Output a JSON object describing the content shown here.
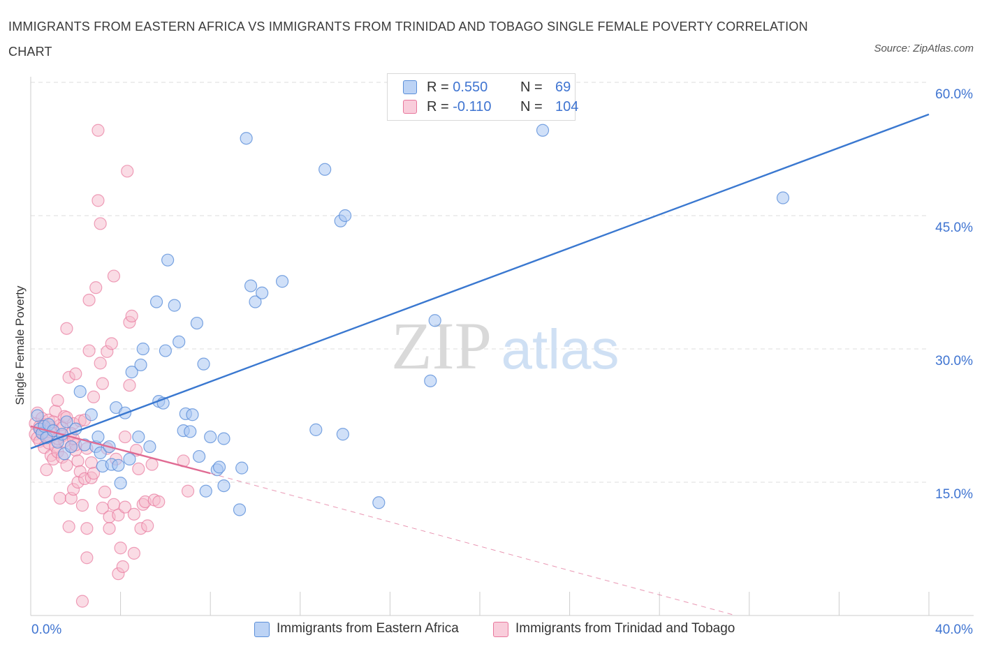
{
  "header": {
    "title": "IMMIGRANTS FROM EASTERN AFRICA VS IMMIGRANTS FROM TRINIDAD AND TOBAGO SINGLE FEMALE POVERTY CORRELATION CHART",
    "source": "Source: ZipAtlas.com"
  },
  "watermark": {
    "zip": "ZIP",
    "atlas": "atlas"
  },
  "colors": {
    "blue_fill": "#a9c7f2",
    "blue_stroke": "#5b8fd9",
    "blue_line": "#3a78d0",
    "pink_fill": "#f6b9cc",
    "pink_stroke": "#e8779c",
    "pink_line": "#e06b93",
    "grid": "#dcdcdc",
    "axis_text": "#3f74d1"
  },
  "legend_top": {
    "rows": [
      {
        "r_label": "R =",
        "r_value": "0.550",
        "n_label": "N =",
        "n_value": "69",
        "color": "#a9c7f2"
      },
      {
        "r_label": "R =",
        "r_value": "-0.110",
        "n_label": "N =",
        "n_value": "104",
        "color": "#f6b9cc"
      }
    ]
  },
  "legend_bottom": [
    {
      "label": "Immigrants from Eastern Africa",
      "color": "#a9c7f2"
    },
    {
      "label": "Immigrants from Trinidad and Tobago",
      "color": "#f6b9cc"
    }
  ],
  "chart_data": {
    "type": "scatter",
    "title": "IMMIGRANTS FROM EASTERN AFRICA VS IMMIGRANTS FROM TRINIDAD AND TOBAGO SINGLE FEMALE POVERTY CORRELATION CHART",
    "xlabel": "",
    "ylabel": "Single Female Poverty",
    "xlim": [
      0,
      40
    ],
    "ylim": [
      0,
      60
    ],
    "x_tick_labels": [
      "0.0%",
      "40.0%"
    ],
    "y_ticks": [
      15,
      30,
      45,
      60
    ],
    "y_tick_labels": [
      "15.0%",
      "30.0%",
      "45.0%",
      "60.0%"
    ],
    "grid": true,
    "legend_position": "bottom",
    "series": [
      {
        "name": "Immigrants from Eastern Africa",
        "color": "#a9c7f2",
        "trend": {
          "x": [
            0.0,
            40.0
          ],
          "y": [
            18.8,
            56.4
          ],
          "style": "solid"
        },
        "points": [
          [
            0.4,
            21.0
          ],
          [
            0.5,
            20.5
          ],
          [
            0.6,
            21.3
          ],
          [
            0.7,
            20.0
          ],
          [
            0.8,
            21.5
          ],
          [
            1.0,
            20.8
          ],
          [
            1.2,
            19.5
          ],
          [
            1.4,
            20.4
          ],
          [
            1.5,
            18.2
          ],
          [
            1.6,
            21.8
          ],
          [
            1.8,
            19.0
          ],
          [
            2.0,
            21.0
          ],
          [
            2.2,
            25.2
          ],
          [
            2.4,
            19.2
          ],
          [
            2.7,
            22.6
          ],
          [
            2.9,
            19.0
          ],
          [
            3.0,
            20.1
          ],
          [
            3.1,
            18.3
          ],
          [
            3.2,
            16.8
          ],
          [
            3.5,
            19.0
          ],
          [
            3.6,
            17.0
          ],
          [
            3.8,
            23.4
          ],
          [
            3.9,
            16.9
          ],
          [
            4.0,
            14.9
          ],
          [
            4.2,
            22.8
          ],
          [
            4.4,
            17.6
          ],
          [
            4.5,
            27.4
          ],
          [
            4.8,
            20.1
          ],
          [
            4.9,
            28.2
          ],
          [
            5.0,
            30.0
          ],
          [
            5.3,
            19.0
          ],
          [
            5.6,
            35.3
          ],
          [
            5.7,
            24.1
          ],
          [
            5.9,
            23.9
          ],
          [
            6.0,
            29.8
          ],
          [
            6.1,
            40.0
          ],
          [
            6.4,
            34.9
          ],
          [
            6.6,
            30.8
          ],
          [
            6.8,
            20.8
          ],
          [
            6.9,
            22.7
          ],
          [
            7.1,
            20.7
          ],
          [
            7.2,
            22.6
          ],
          [
            7.4,
            32.9
          ],
          [
            7.5,
            17.9
          ],
          [
            7.7,
            28.3
          ],
          [
            7.8,
            14.0
          ],
          [
            8.0,
            20.1
          ],
          [
            8.3,
            16.4
          ],
          [
            8.4,
            16.7
          ],
          [
            8.6,
            14.6
          ],
          [
            8.6,
            19.9
          ],
          [
            9.3,
            11.9
          ],
          [
            9.4,
            16.6
          ],
          [
            9.6,
            53.7
          ],
          [
            9.8,
            37.1
          ],
          [
            10.0,
            35.3
          ],
          [
            10.3,
            36.3
          ],
          [
            11.2,
            37.6
          ],
          [
            12.7,
            20.9
          ],
          [
            13.1,
            50.2
          ],
          [
            13.8,
            44.4
          ],
          [
            13.9,
            20.4
          ],
          [
            14.0,
            45.0
          ],
          [
            15.5,
            12.7
          ],
          [
            17.8,
            26.4
          ],
          [
            18.0,
            33.2
          ],
          [
            22.8,
            54.6
          ],
          [
            33.5,
            47.0
          ],
          [
            0.3,
            22.5
          ]
        ]
      },
      {
        "name": "Immigrants from Trinidad and Tobago",
        "color": "#f6b9cc",
        "trend": {
          "x": [
            0.0,
            8.0
          ],
          "y": [
            21.3,
            16.0
          ],
          "style": "solid"
        },
        "trend_extended": {
          "x": [
            8.0,
            31.4
          ],
          "y": [
            16.0,
            0.0
          ],
          "style": "dashed"
        },
        "points": [
          [
            0.2,
            21.6
          ],
          [
            0.2,
            20.4
          ],
          [
            0.3,
            22.8
          ],
          [
            0.3,
            20.0
          ],
          [
            0.4,
            21.0
          ],
          [
            0.4,
            19.6
          ],
          [
            0.5,
            22.2
          ],
          [
            0.5,
            20.6
          ],
          [
            0.6,
            18.9
          ],
          [
            0.6,
            21.5
          ],
          [
            0.7,
            20.2
          ],
          [
            0.7,
            16.4
          ],
          [
            0.8,
            22.0
          ],
          [
            0.8,
            19.4
          ],
          [
            0.9,
            18.0
          ],
          [
            0.9,
            21.2
          ],
          [
            1.0,
            17.6
          ],
          [
            1.0,
            20.9
          ],
          [
            1.1,
            23.0
          ],
          [
            1.1,
            19.0
          ],
          [
            1.2,
            18.4
          ],
          [
            1.2,
            24.2
          ],
          [
            1.3,
            13.2
          ],
          [
            1.3,
            21.4
          ],
          [
            1.4,
            17.8
          ],
          [
            1.4,
            20.2
          ],
          [
            1.5,
            19.6
          ],
          [
            1.5,
            22.4
          ],
          [
            1.6,
            32.3
          ],
          [
            1.6,
            16.9
          ],
          [
            1.7,
            26.8
          ],
          [
            1.7,
            10.0
          ],
          [
            1.8,
            19.0
          ],
          [
            1.8,
            13.2
          ],
          [
            1.9,
            21.6
          ],
          [
            1.9,
            14.2
          ],
          [
            2.0,
            27.2
          ],
          [
            2.0,
            18.6
          ],
          [
            2.1,
            15.0
          ],
          [
            2.1,
            17.4
          ],
          [
            2.2,
            16.2
          ],
          [
            2.2,
            21.9
          ],
          [
            2.3,
            1.6
          ],
          [
            2.3,
            12.4
          ],
          [
            2.4,
            15.4
          ],
          [
            2.4,
            22.0
          ],
          [
            2.5,
            18.8
          ],
          [
            2.5,
            6.5
          ],
          [
            2.6,
            35.5
          ],
          [
            2.6,
            29.8
          ],
          [
            2.7,
            15.5
          ],
          [
            2.7,
            17.2
          ],
          [
            2.8,
            24.6
          ],
          [
            2.8,
            16.0
          ],
          [
            2.9,
            36.9
          ],
          [
            3.0,
            54.6
          ],
          [
            3.0,
            46.7
          ],
          [
            3.1,
            44.1
          ],
          [
            3.1,
            28.4
          ],
          [
            3.2,
            26.1
          ],
          [
            3.2,
            12.1
          ],
          [
            3.3,
            13.9
          ],
          [
            3.4,
            29.7
          ],
          [
            3.4,
            18.8
          ],
          [
            3.5,
            11.1
          ],
          [
            3.5,
            9.8
          ],
          [
            3.6,
            30.6
          ],
          [
            3.7,
            38.2
          ],
          [
            3.7,
            12.5
          ],
          [
            3.8,
            17.6
          ],
          [
            3.9,
            11.3
          ],
          [
            3.9,
            4.7
          ],
          [
            4.0,
            7.6
          ],
          [
            4.1,
            5.5
          ],
          [
            4.2,
            12.2
          ],
          [
            4.2,
            20.1
          ],
          [
            4.3,
            50.0
          ],
          [
            4.4,
            33.0
          ],
          [
            4.4,
            25.9
          ],
          [
            4.5,
            33.7
          ],
          [
            4.6,
            11.4
          ],
          [
            4.6,
            7.0
          ],
          [
            4.7,
            18.6
          ],
          [
            4.8,
            16.5
          ],
          [
            4.9,
            9.8
          ],
          [
            5.0,
            12.5
          ],
          [
            5.1,
            12.8
          ],
          [
            5.2,
            10.1
          ],
          [
            5.4,
            17.0
          ],
          [
            5.5,
            13.0
          ],
          [
            5.7,
            12.8
          ],
          [
            0.4,
            21.3
          ],
          [
            0.6,
            20.7
          ],
          [
            0.8,
            20.2
          ],
          [
            1.0,
            21.8
          ],
          [
            1.2,
            19.9
          ],
          [
            1.4,
            21.1
          ],
          [
            1.6,
            22.3
          ],
          [
            1.8,
            20.5
          ],
          [
            2.0,
            19.2
          ],
          [
            6.8,
            17.4
          ],
          [
            7.0,
            14.0
          ],
          [
            2.5,
            9.8
          ],
          [
            1.9,
            19.9
          ]
        ]
      }
    ]
  }
}
